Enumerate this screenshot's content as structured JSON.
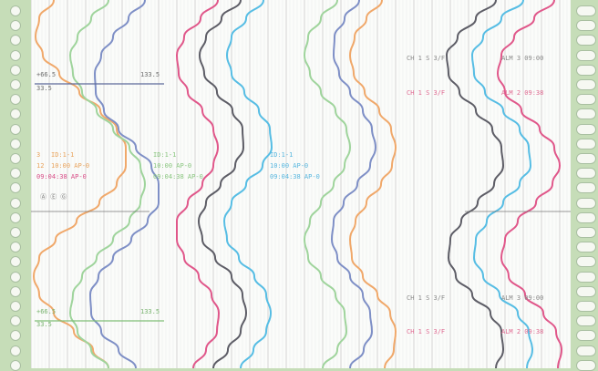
{
  "chart_data": {
    "type": "line",
    "title": "",
    "xlabel": "",
    "ylabel": "",
    "grid": true,
    "y": [
      0,
      0.05,
      0.1,
      0.15,
      0.2,
      0.25,
      0.3,
      0.35,
      0.4,
      0.45,
      0.5,
      0.55,
      0.6,
      0.65,
      0.7,
      0.75,
      0.8,
      0.85,
      0.9,
      0.95,
      1.0
    ],
    "xlim": [
      0,
      592
    ],
    "ylim": [
      0,
      1
    ],
    "series": [
      {
        "color": "#f0a86a",
        "values": [
          25,
          9,
          5,
          13,
          31,
          53,
          76,
          94,
          104,
          104,
          94,
          75,
          50,
          27,
          9,
          3,
          9,
          25,
          47,
          68,
          85
        ]
      },
      {
        "color": "#9fd49c",
        "values": [
          85,
          66,
          51,
          43,
          46,
          56,
          72,
          90,
          108,
          120,
          125,
          120,
          108,
          90,
          72,
          56,
          46,
          43,
          51,
          66,
          85
        ]
      },
      {
        "color": "#7e8fc6",
        "values": [
          125,
          107,
          90,
          77,
          70,
          71,
          80,
          96,
          115,
          132,
          140,
          140,
          128,
          110,
          90,
          74,
          65,
          66,
          77,
          96,
          115
        ]
      },
      {
        "color": "#e0578a",
        "values": [
          205,
          186,
          168,
          160,
          162,
          172,
          188,
          200,
          205,
          200,
          188,
          172,
          160,
          160,
          168,
          184,
          198,
          206,
          204,
          192,
          178
        ]
      },
      {
        "color": "#5d5d66",
        "values": [
          230,
          209,
          192,
          185,
          190,
          204,
          221,
          232,
          233,
          224,
          208,
          192,
          184,
          188,
          202,
          220,
          232,
          236,
          230,
          216,
          200
        ]
      },
      {
        "color": "#56bde4",
        "values": [
          255,
          236,
          220,
          215,
          220,
          234,
          250,
          262,
          264,
          254,
          236,
          220,
          212,
          215,
          228,
          245,
          258,
          263,
          258,
          244,
          230
        ]
      },
      {
        "color": "#9fd49c",
        "values": [
          336,
          318,
          304,
          300,
          306,
          318,
          334,
          346,
          350,
          344,
          332,
          318,
          306,
          300,
          304,
          318,
          334,
          344,
          346,
          336,
          320
        ]
      },
      {
        "color": "#7e8fc6",
        "values": [
          360,
          344,
          333,
          332,
          338,
          350,
          364,
          374,
          378,
          372,
          358,
          343,
          332,
          330,
          336,
          350,
          364,
          372,
          374,
          365,
          350
        ]
      },
      {
        "color": "#f0a86a",
        "values": [
          385,
          368,
          355,
          350,
          354,
          366,
          382,
          395,
          400,
          396,
          384,
          368,
          356,
          350,
          352,
          364,
          380,
          394,
          400,
          398,
          388
        ]
      },
      {
        "color": "#5d5d66",
        "values": [
          510,
          488,
          468,
          456,
          458,
          470,
          488,
          506,
          516,
          518,
          508,
          490,
          472,
          460,
          458,
          466,
          484,
          504,
          516,
          518,
          510
        ]
      },
      {
        "color": "#56bde4",
        "values": [
          540,
          516,
          496,
          484,
          486,
          498,
          518,
          536,
          546,
          548,
          536,
          518,
          500,
          488,
          486,
          496,
          514,
          534,
          546,
          550,
          544
        ]
      },
      {
        "color": "#e0578a",
        "values": [
          574,
          552,
          530,
          516,
          512,
          520,
          538,
          558,
          574,
          580,
          572,
          554,
          534,
          520,
          516,
          524,
          542,
          562,
          576,
          582,
          578
        ]
      }
    ]
  },
  "colors": {
    "background": "#c6ddb8",
    "paper": "#fbfcfa",
    "grid": "#dedede",
    "hole_border": "#a9bfa1"
  },
  "annotations": {
    "top_left_val": "+66.5",
    "top_left_sub": "33.5",
    "top_mid_val": "133.5",
    "bottom_left_val": "+66.5",
    "bottom_left_sub": "33.5",
    "bottom_mid_val": "133.5",
    "row_a_1": "3",
    "row_a_2": "ID:1-1",
    "row_b_1": "12",
    "row_b_2": "10:00 AP-0",
    "row_c": "09:04:38 AP-0",
    "center_note": "Ⓐ Ⓔ Ⓖ",
    "right_top_a": "CH 1 S 3/F",
    "right_top_b": "ALM 3 09:00",
    "right_mid_a": "CH 1 S 3/F",
    "right_mid_b": "ALM 2 09:38",
    "right_bot_a": "CH 1 S 3/F",
    "right_bot_b": "ALM 3 09:00",
    "right_bot2_a": "CH 1 S 3/F",
    "right_bot2_b": "ALM 2 09:38"
  }
}
